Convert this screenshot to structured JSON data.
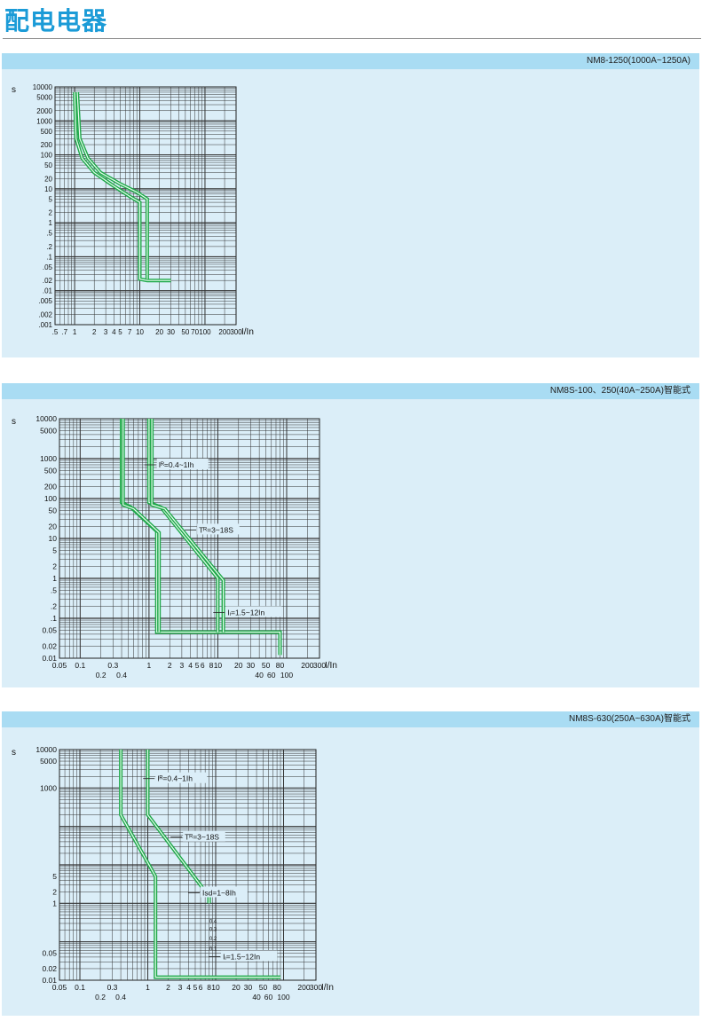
{
  "page": {
    "title": "配电电器"
  },
  "sections": [
    {
      "header": "NM8-1250(1000A~1250A)"
    },
    {
      "header": "NM8S-100、250(40A~250A)智能式"
    },
    {
      "header": "NM8S-630(250A~630A)智能式"
    }
  ],
  "chart_data": [
    {
      "type": "line",
      "title": "NM8-1250(1000A~1250A)",
      "ylabel": "s",
      "xlabel": "I/In",
      "x_scale": "log",
      "y_scale": "log",
      "xlim": [
        0.5,
        300
      ],
      "ylim": [
        0.001,
        10000
      ],
      "grid": true,
      "x_ticks": [
        ".5",
        ".7",
        "1",
        "2",
        "3",
        "4",
        "5",
        "7",
        "10",
        "20",
        "30",
        "50",
        "70",
        "100",
        "200",
        "300"
      ],
      "y_ticks": [
        "10000",
        "5000",
        "2000",
        "1000",
        "500",
        "200",
        "100",
        "50",
        "20",
        "10",
        "5",
        "2",
        "1",
        ".5",
        ".2",
        ".1",
        ".05",
        ".02",
        ".01",
        ".005",
        ".002",
        ".001"
      ],
      "series": [
        {
          "values": [
            [
              1.0,
              7000
            ],
            [
              1.05,
              300
            ],
            [
              1.3,
              80
            ],
            [
              2,
              30
            ],
            [
              4,
              12
            ],
            [
              7,
              6
            ],
            [
              10,
              4
            ],
            [
              10,
              0.022
            ],
            [
              13,
              0.02
            ],
            [
              30,
              0.02
            ]
          ]
        },
        {
          "values": [
            [
              1.1,
              7000
            ],
            [
              1.2,
              300
            ],
            [
              1.6,
              80
            ],
            [
              2.5,
              30
            ],
            [
              5,
              14
            ],
            [
              9,
              8
            ],
            [
              13,
              5
            ],
            [
              13,
              0.022
            ]
          ]
        }
      ]
    },
    {
      "type": "line",
      "title": "NM8S-100、250(40A~250A)智能式",
      "ylabel": "s",
      "xlabel": "I/In",
      "x_scale": "log",
      "y_scale": "log",
      "xlim": [
        0.05,
        300
      ],
      "ylim": [
        0.01,
        10000
      ],
      "grid": true,
      "x_ticks_top": [
        "0.05",
        "0.1",
        "0.3",
        "1",
        "2",
        "3",
        "4",
        "5",
        "6",
        "8",
        "10",
        "20",
        "30",
        "50",
        "80",
        "200",
        "300"
      ],
      "x_ticks_bottom": [
        "0.2",
        "0.4",
        "40",
        "60",
        "100"
      ],
      "y_ticks": [
        "10000",
        "5000",
        "1000",
        "500",
        "200",
        "100",
        "50",
        "20",
        "10",
        "5",
        "2",
        "1",
        ".5",
        ".2",
        ".1",
        "0.05",
        "0.02",
        "0.01"
      ],
      "annotations": [
        "Iᴿ=0.4~1Ih",
        "Tᴿ=3~18S",
        "Iᵢ=1.5~12In"
      ],
      "series": [
        {
          "values": [
            [
              0.4,
              10000
            ],
            [
              0.4,
              80
            ],
            [
              0.55,
              60
            ],
            [
              1.3,
              15
            ],
            [
              1.3,
              0.045
            ],
            [
              80,
              0.045
            ],
            [
              80,
              0.012
            ]
          ]
        },
        {
          "values": [
            [
              1.0,
              10000
            ],
            [
              1.0,
              80
            ],
            [
              1.5,
              60
            ],
            [
              10,
              1.0
            ],
            [
              10,
              0.045
            ]
          ]
        },
        {
          "values": [
            [
              0.42,
              10000
            ],
            [
              0.42,
              70
            ],
            [
              0.6,
              55
            ],
            [
              1.4,
              14
            ],
            [
              1.4,
              0.045
            ]
          ]
        },
        {
          "values": [
            [
              1.1,
              10000
            ],
            [
              1.1,
              70
            ],
            [
              1.7,
              55
            ],
            [
              12,
              0.9
            ],
            [
              12,
              0.045
            ]
          ]
        }
      ]
    },
    {
      "type": "line",
      "title": "NM8S-630(250A~630A)智能式",
      "ylabel": "s",
      "xlabel": "I/In",
      "x_scale": "log",
      "y_scale": "log",
      "xlim": [
        0.05,
        300
      ],
      "ylim": [
        0.01,
        10000
      ],
      "grid": true,
      "x_ticks_top": [
        "0.05",
        "0.1",
        "0.3",
        "1",
        "2",
        "3",
        "4",
        "5",
        "6",
        "8",
        "10",
        "20",
        "30",
        "50",
        "80",
        "200",
        "300"
      ],
      "x_ticks_bottom": [
        "0.2",
        "0.4",
        "40",
        "60",
        "100"
      ],
      "y_ticks": [
        "10000",
        "5000",
        "1000",
        "5",
        "2",
        "1",
        "0.05",
        "0.02",
        "0.01"
      ],
      "annotations": [
        "Iᴿ=0.4~1Ih",
        "Tᴿ=3~18S",
        "Isd=1~8Ih",
        "Iᵢ=1.5~12In",
        "0.4",
        "0.3",
        "0.2",
        "0.1"
      ],
      "series": [
        {
          "values": [
            [
              0.4,
              10000
            ],
            [
              0.4,
              200
            ],
            [
              1.3,
              5
            ],
            [
              1.3,
              0.012
            ],
            [
              90,
              0.012
            ]
          ]
        },
        {
          "values": [
            [
              1.0,
              10000
            ],
            [
              1.0,
              200
            ],
            [
              8,
              1.5
            ],
            [
              8,
              1
            ]
          ]
        }
      ]
    }
  ]
}
